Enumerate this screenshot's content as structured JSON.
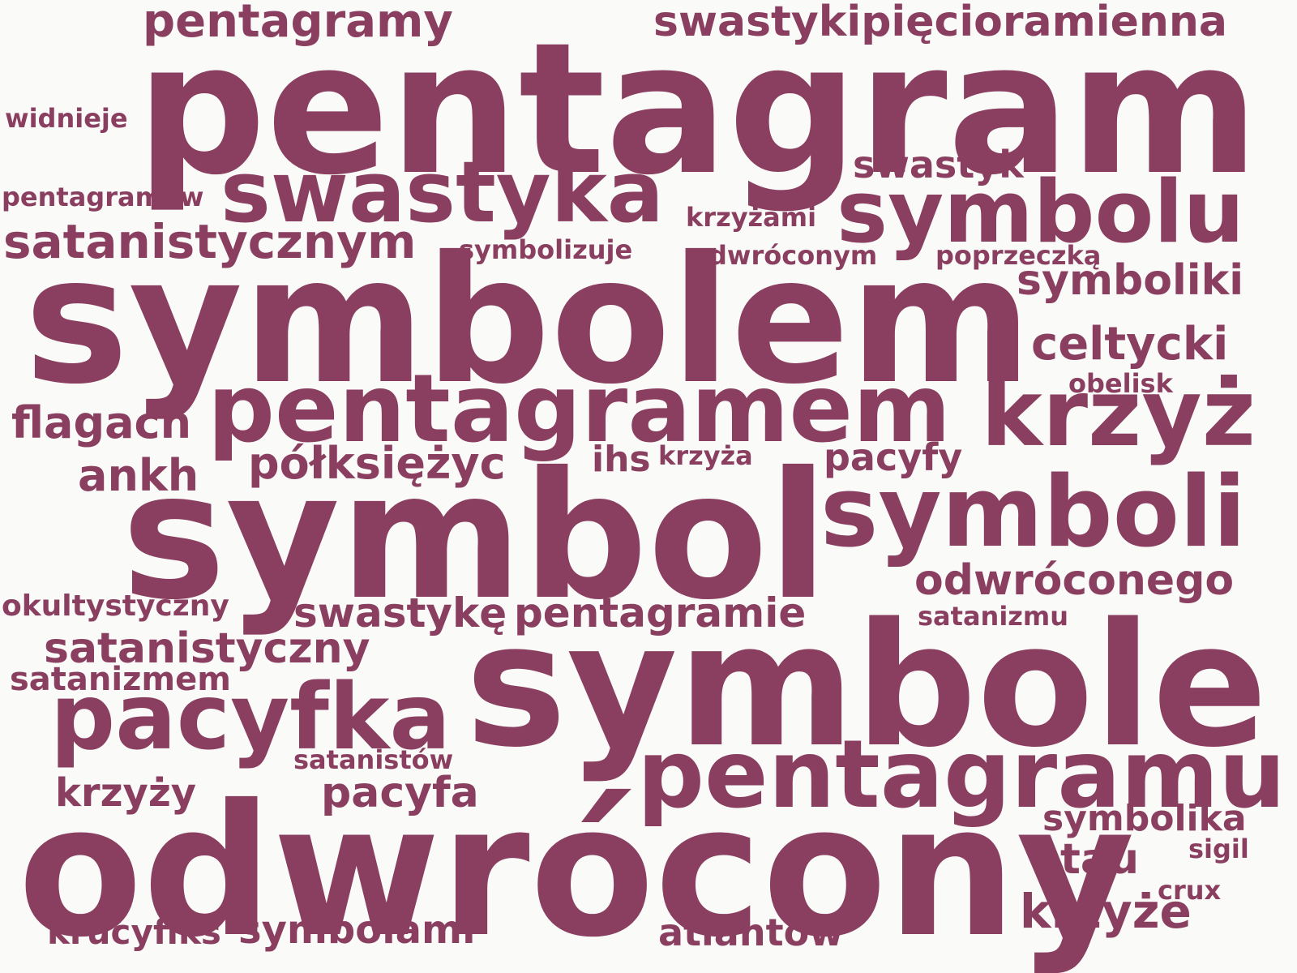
{
  "color": "#8b3f60",
  "words": [
    "pentagram",
    "swastyka",
    "symbolu",
    "symbolem",
    "pentagramem",
    "krzyż",
    "symbol",
    "symboli",
    "symbole",
    "pentagramu",
    "odwrócony",
    "pacyfka",
    "pentagramy",
    "swastykipięcioramienna",
    "widnieje",
    "swastyk",
    "pentagramów",
    "krzyżami",
    "satanistycznym",
    "symbolizuje",
    "odwróconym",
    "poprzeczką",
    "symboliki",
    "celtycki",
    "obelisk",
    "flagach",
    "półksiężyc",
    "ihs",
    "krzyża",
    "pacyfy",
    "ankh",
    "odwróconego",
    "okultystyczny",
    "swastykę",
    "pentagramie",
    "satanizmu",
    "satanistyczny",
    "satanizmem",
    "satanistów",
    "krzyży",
    "pacyfa",
    "symbolika",
    "tau",
    "sigil",
    "crux",
    "krzyże",
    "krucyfiks",
    "symbolami",
    "atlantów"
  ]
}
